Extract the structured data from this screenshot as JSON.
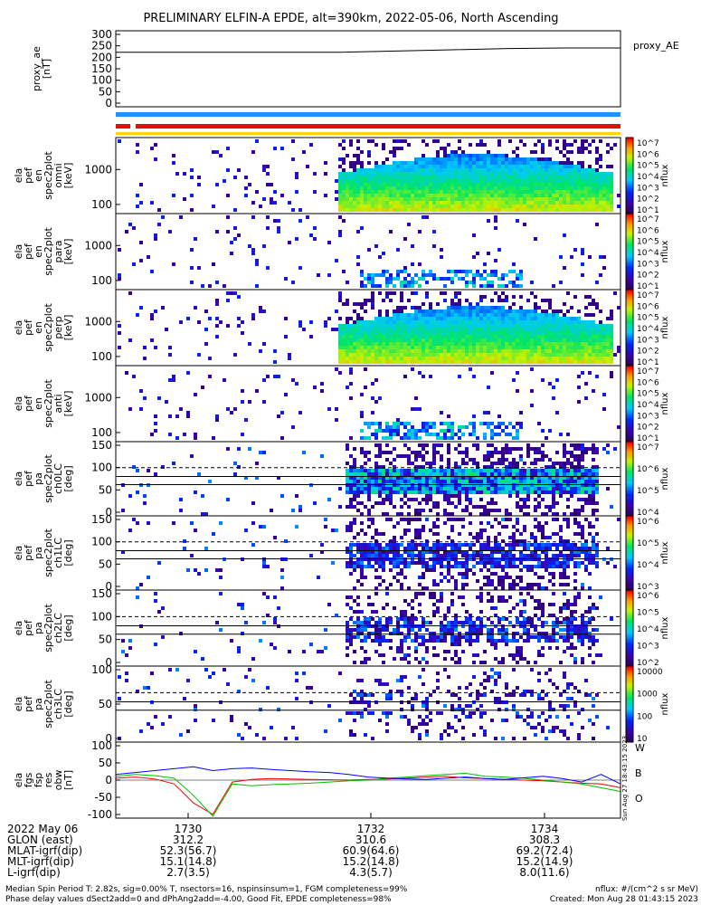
{
  "title": "PRELIMINARY ELFIN-A EPDE, alt=390km, 2022-05-06, North Ascending",
  "colors": {
    "bar_blue": "#1e90ff",
    "bar_red": "#e01010",
    "bar_yellow": "#ffd400",
    "line_red": "#ff0000",
    "line_green": "#00c000",
    "line_blue": "#0000ff"
  },
  "panels": [
    {
      "id": "proxy_ae",
      "label_lines": [
        "proxy_ae",
        "[nT]"
      ],
      "ticks": [
        "300",
        "250",
        "200",
        "150",
        "100",
        "50",
        "0"
      ],
      "legend": "proxy_AE"
    },
    {
      "id": "en_omni",
      "label_lines": [
        "ela",
        "pef",
        "en",
        "spec2plot",
        "omni",
        "[keV]"
      ],
      "ticks": [
        "1000",
        "100"
      ],
      "cbar_ticks": [
        "10^7",
        "10^6",
        "10^5",
        "10^4",
        "10^3",
        "10^2",
        "10^1"
      ],
      "unit": "nflux"
    },
    {
      "id": "en_para",
      "label_lines": [
        "ela",
        "pef",
        "en",
        "spec2plot",
        "para",
        "[keV]"
      ],
      "ticks": [
        "1000",
        "100"
      ],
      "cbar_ticks": [
        "10^7",
        "10^6",
        "10^5",
        "10^4",
        "10^3",
        "10^2",
        "10^1"
      ],
      "unit": "nflux"
    },
    {
      "id": "en_perp",
      "label_lines": [
        "ela",
        "pef",
        "en",
        "spec2plot",
        "perp",
        "[keV]"
      ],
      "ticks": [
        "1000",
        "100"
      ],
      "cbar_ticks": [
        "10^7",
        "10^6",
        "10^5",
        "10^4",
        "10^3",
        "10^2",
        "10^1"
      ],
      "unit": "nflux"
    },
    {
      "id": "en_anti",
      "label_lines": [
        "ela",
        "pef",
        "en",
        "spec2plot",
        "anti",
        "[keV]"
      ],
      "ticks": [
        "1000",
        "100"
      ],
      "cbar_ticks": [
        "10^7",
        "10^6",
        "10^5",
        "10^4",
        "10^3",
        "10^2",
        "10^1"
      ],
      "unit": "nflux"
    },
    {
      "id": "pa_ch0",
      "label_lines": [
        "ela",
        "pef",
        "pa",
        "spec2plot",
        "ch0LC",
        "[deg]"
      ],
      "ticks": [
        "150",
        "100",
        "50",
        "0"
      ],
      "cbar_ticks": [
        "10^7",
        "10^6",
        "10^5",
        "10^4"
      ],
      "unit": "nflux"
    },
    {
      "id": "pa_ch1",
      "label_lines": [
        "ela",
        "pef",
        "pa",
        "spec2plot",
        "ch1LC",
        "[deg]"
      ],
      "ticks": [
        "150",
        "100",
        "50",
        "0"
      ],
      "cbar_ticks": [
        "10^6",
        "10^5",
        "10^4",
        "10^3"
      ],
      "unit": "nflux"
    },
    {
      "id": "pa_ch2",
      "label_lines": [
        "ela",
        "pef",
        "pa",
        "spec2plot",
        "ch2LC",
        "[deg]"
      ],
      "ticks": [
        "150",
        "100",
        "50",
        "0"
      ],
      "cbar_ticks": [
        "10^6",
        "10^5",
        "10^4",
        "10^3",
        "10^2"
      ],
      "unit": "nflux"
    },
    {
      "id": "pa_ch3",
      "label_lines": [
        "ela",
        "pef",
        "pa",
        "spec2plot",
        "ch3LC",
        "[deg]"
      ],
      "ticks": [
        "100",
        "50",
        "0"
      ],
      "cbar_ticks": [
        "10000",
        "1000",
        "100",
        "10"
      ],
      "unit": "nflux"
    },
    {
      "id": "fgs",
      "label_lines": [
        "ela",
        "fgs",
        "fsp",
        "res",
        "obw",
        "[nT]"
      ],
      "ticks": [
        "100",
        "50",
        "0",
        "-50",
        "-100"
      ],
      "legend_letters": [
        "W",
        "B",
        "O"
      ]
    }
  ],
  "chart_data": {
    "type": "line",
    "title": "PRELIMINARY ELFIN-A EPDE, alt=390km, 2022-05-06, North Ascending",
    "x_ticks": [
      "1730",
      "1732",
      "1734"
    ],
    "proxy_ae": {
      "ylim": [
        0,
        300
      ],
      "values_nT": [
        215,
        215,
        215,
        215,
        215,
        220,
        225,
        230,
        232,
        232
      ]
    },
    "fgs": {
      "ylim": [
        -100,
        100
      ],
      "series": [
        {
          "name": "W",
          "color": "#ff0000",
          "values": [
            5,
            8,
            3,
            -10,
            -60,
            -90,
            -5,
            2,
            4,
            3,
            2,
            1,
            0,
            2,
            3,
            5,
            8,
            10,
            6,
            4,
            2,
            0,
            -2,
            -5,
            -8,
            -10,
            -20
          ]
        },
        {
          "name": "B",
          "color": "#00c000",
          "values": [
            10,
            15,
            12,
            5,
            -40,
            -95,
            -10,
            -15,
            -12,
            -10,
            -8,
            -5,
            -2,
            0,
            5,
            8,
            12,
            15,
            18,
            10,
            8,
            5,
            0,
            -5,
            -10,
            -20,
            -30
          ]
        },
        {
          "name": "O",
          "color": "#0000ff",
          "values": [
            15,
            20,
            25,
            30,
            35,
            25,
            30,
            32,
            28,
            25,
            22,
            20,
            15,
            8,
            5,
            3,
            2,
            5,
            8,
            4,
            2,
            6,
            10,
            4,
            -5,
            15,
            -10
          ]
        }
      ]
    }
  },
  "footer": {
    "row_labels": [
      "2022 May 06",
      "GLON (east)",
      "MLAT-igrf(dip)",
      "MLT-igrf(dip)",
      "L-igrf(dip)"
    ],
    "col_1730": [
      "1730",
      "312.2",
      "52.3(56.7)",
      "15.1(14.8)",
      "2.7(3.5)"
    ],
    "col_1732": [
      "1732",
      "310.6",
      "60.9(64.6)",
      "15.2(14.8)",
      "4.3(5.7)"
    ],
    "col_1734": [
      "1734",
      "308.3",
      "69.2(72.4)",
      "15.2(14.9)",
      "8.0(11.6)"
    ],
    "line1_left": "Median Spin Period T: 2.82s, sig=0.00% T, nsectors=16, nspinsinsum=1, FGM completeness=99%",
    "line2_left": "Phase delay values dSect2add=0 and dPhAng2add=-4.00, Good Fit, EPDE completeness=98%",
    "line1_right": "nflux: #/(cm^2 s sr MeV)",
    "line2_right": "Created: Mon Aug 28 01:43:15 2023",
    "side_stamp": "Sun Aug 27 18:43:15 2023"
  }
}
